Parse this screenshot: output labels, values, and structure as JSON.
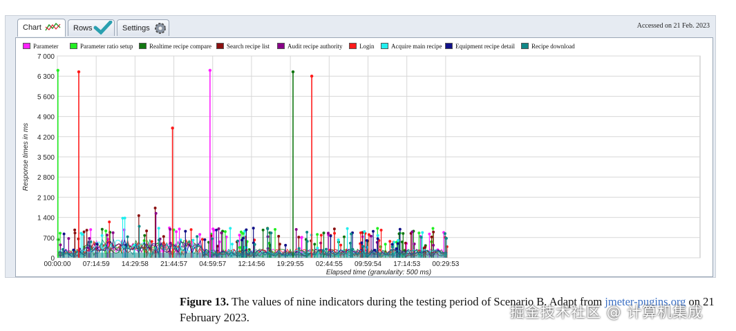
{
  "tabs": [
    {
      "label": "Chart",
      "icon": "chart-icon"
    },
    {
      "label": "Rows",
      "icon": "checkmark-icon"
    },
    {
      "label": "Settings",
      "icon": "gear-icon"
    }
  ],
  "accessed_note": "Accessed on 21 Feb. 2023",
  "caption": {
    "figure_label": "Figure 13.",
    "text": " The values of nine indicators during the testing period of Scenario B. Adapt from ",
    "link_text": "jmeter-pugins.org",
    "text_after": " on 21 February 2023."
  },
  "watermark": "掘金技术社区 @ 计算机集成",
  "chart_data": {
    "type": "line",
    "title": "",
    "xlabel": "Elapsed time (granularity: 500 ms)",
    "ylabel": "Response times in ms",
    "ylim": [
      0,
      7000
    ],
    "yticks": [
      0,
      700,
      1400,
      2100,
      2800,
      3500,
      4200,
      4900,
      5600,
      6300,
      7000
    ],
    "ytick_labels": [
      "0",
      "700",
      "1 400",
      "2 100",
      "2 800",
      "3 500",
      "4 200",
      "4 900",
      "5 600",
      "6 300",
      "7 000"
    ],
    "xlim_hours": [
      0,
      120
    ],
    "xticks_hours": [
      0,
      7.25,
      14.5,
      21.75,
      29,
      36.25,
      43.5,
      50.75,
      58,
      65.25,
      72.5
    ],
    "xtick_labels": [
      "00:00:00",
      "07:14:59",
      "14:29:58",
      "21:44:57",
      "04:59:57",
      "12:14:56",
      "19:29:55",
      "02:44:55",
      "09:59:54",
      "17:14:53",
      "00:29:53"
    ],
    "grid": true,
    "legend_position": "top",
    "series": [
      {
        "name": "Parameter",
        "color": "#ff22ff",
        "peaks": [
          {
            "t": 28.5,
            "v": 6500
          }
        ]
      },
      {
        "name": "Parameter ratio setup",
        "color": "#22ee22",
        "peaks": [
          {
            "t": 0.1,
            "v": 6500
          }
        ]
      },
      {
        "name": "Realtime recipe compare",
        "color": "#117711",
        "peaks": [
          {
            "t": 44.0,
            "v": 6450
          }
        ]
      },
      {
        "name": "Search recipe list",
        "color": "#8b1010",
        "peaks": []
      },
      {
        "name": "Audit recipe authority",
        "color": "#880088",
        "peaks": []
      },
      {
        "name": "Login",
        "color": "#ff1a1a",
        "peaks": [
          {
            "t": 4.0,
            "v": 6450
          },
          {
            "t": 21.5,
            "v": 4500
          },
          {
            "t": 47.5,
            "v": 6300
          }
        ]
      },
      {
        "name": "Acquire main recipe",
        "color": "#22eeee",
        "peaks": []
      },
      {
        "name": "Equipment recipe detail",
        "color": "#111188",
        "peaks": []
      },
      {
        "name": "Recipe download",
        "color": "#118888",
        "peaks": []
      }
    ]
  }
}
